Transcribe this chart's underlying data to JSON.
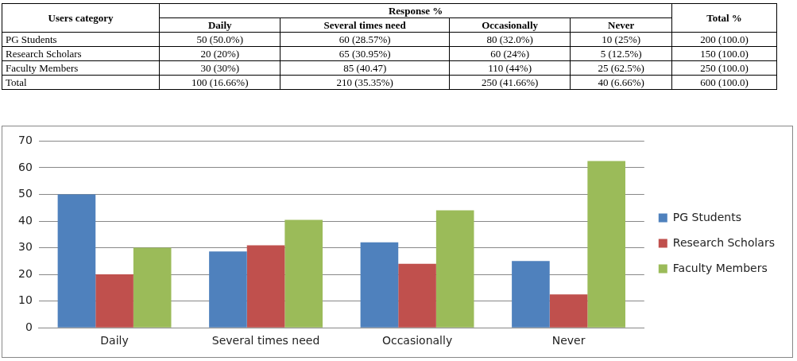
{
  "chart_data": [
    {
      "type": "other",
      "annotations": [
        "Users category",
        "Response %",
        "Total %",
        "Daily",
        "Several times need",
        "Occasionally",
        "Never",
        "PG Students",
        "50 (50.0%)",
        "60 (28.57%)",
        "80 (32.0%)",
        "10 (25%)",
        "200 (100.0)",
        "Research Scholars",
        "20 (20%)",
        "65 (30.95%)",
        "60 (24%)",
        "5 (12.5%)",
        "150 (100.0)",
        "Faculty Members",
        "30 (30%)",
        "85 (40.47)",
        "110 (44%)",
        "25 (62.5%)",
        "250 (100.0)",
        "Total",
        "100 (16.66%)",
        "210 (35.35%)",
        "250 (41.66%)",
        "40 (6.66%)",
        "600 (100.0)"
      ]
    },
    {
      "type": "bar",
      "categories": [
        "Daily",
        "Several times need",
        "Occasionally",
        "Never"
      ],
      "series": [
        {
          "name": "PG Students",
          "color": "#4f81bd",
          "values": [
            50,
            28.57,
            32,
            25
          ]
        },
        {
          "name": "Research Scholars",
          "color": "#c0504d",
          "values": [
            20,
            30.95,
            24,
            12.5
          ]
        },
        {
          "name": "Faculty Members",
          "color": "#9bbb59",
          "values": [
            30,
            40.47,
            44,
            62.5
          ]
        }
      ],
      "ylim": [
        0,
        70
      ],
      "yticks": [
        0,
        10,
        20,
        30,
        40,
        50,
        60,
        70
      ],
      "grid": "y",
      "legend": "right"
    }
  ]
}
